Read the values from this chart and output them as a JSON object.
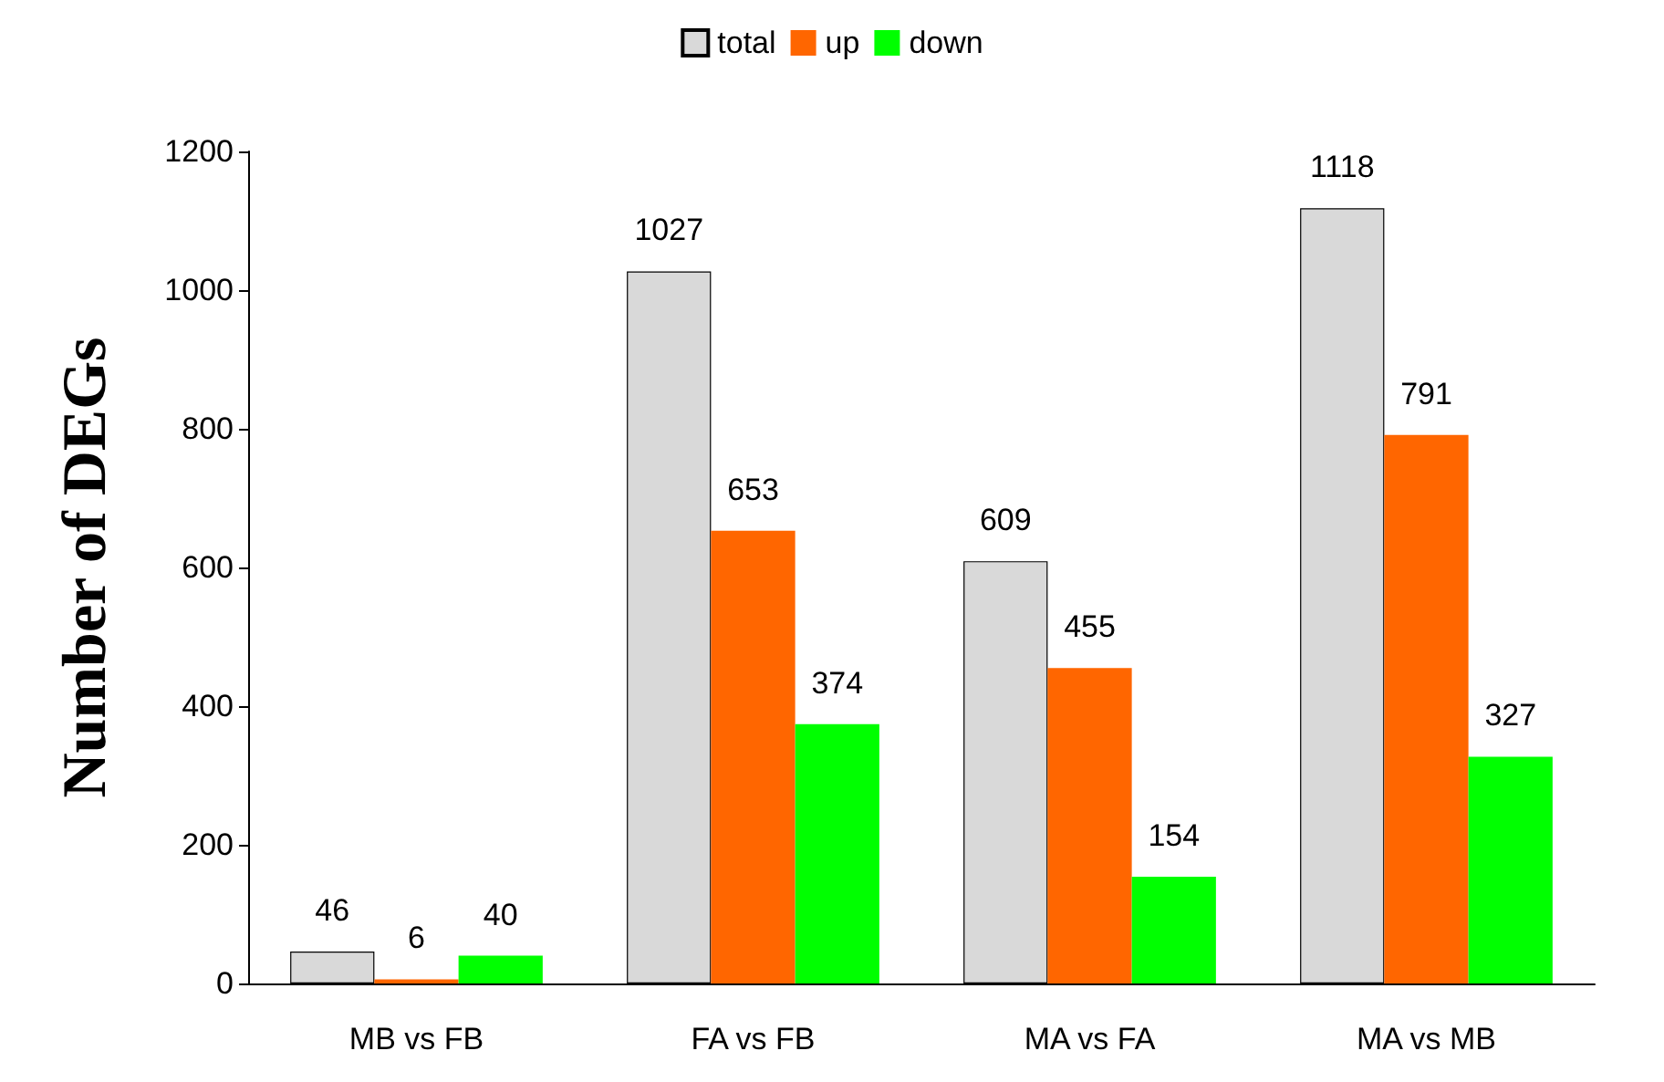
{
  "chart_data": {
    "type": "bar",
    "ylabel": "Number of DEGs",
    "categories": [
      "MB vs FB",
      "FA vs FB",
      "MA vs FA",
      "MA vs MB"
    ],
    "series": [
      {
        "name": "total",
        "color": "#d9d9d9",
        "values": [
          46,
          1027,
          609,
          1118
        ]
      },
      {
        "name": "up",
        "color": "#ff6600",
        "values": [
          6,
          653,
          455,
          791
        ]
      },
      {
        "name": "down",
        "color": "#00ff00",
        "values": [
          40,
          374,
          154,
          327
        ]
      }
    ],
    "ylim": [
      0,
      1200
    ],
    "yticks": [
      0,
      200,
      400,
      600,
      800,
      1000,
      1200
    ],
    "data_labels": true,
    "grid": false,
    "legend": "top"
  }
}
